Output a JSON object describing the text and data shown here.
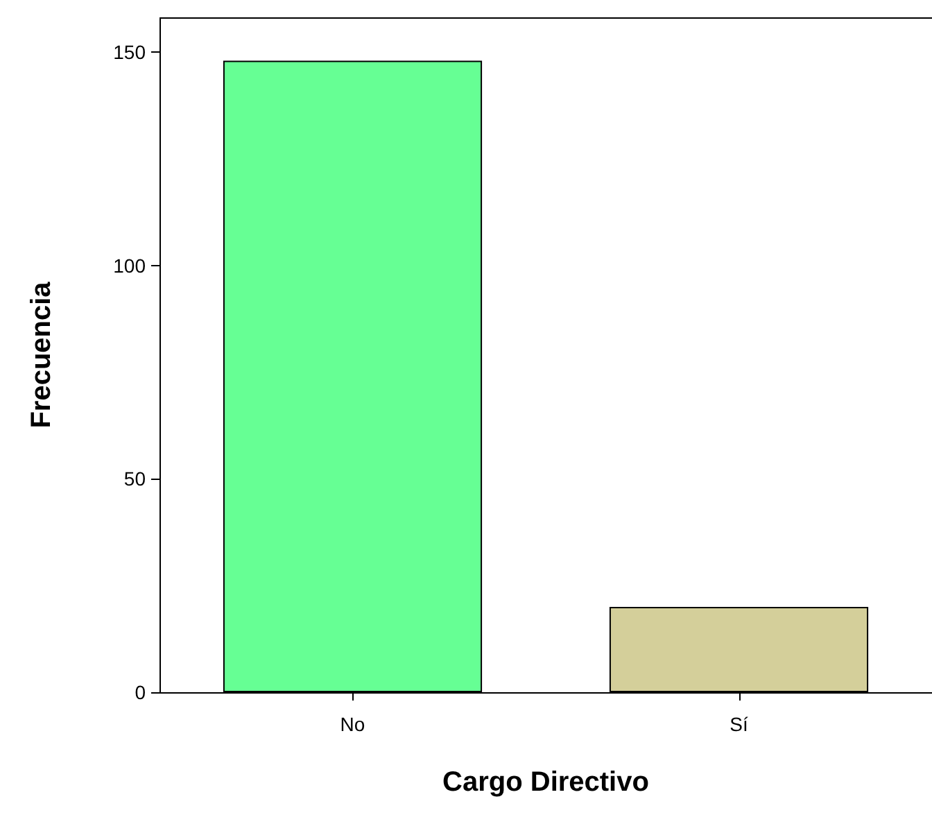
{
  "chart_data": {
    "type": "bar",
    "xlabel": "Cargo Directivo",
    "ylabel": "Frecuencia",
    "categories": [
      "No",
      "Sí"
    ],
    "values": [
      148,
      20
    ],
    "colors": [
      "#66ff94",
      "#d4cf9a"
    ],
    "ylim": [
      0,
      158
    ],
    "yticks": [
      0,
      50,
      100,
      150
    ],
    "grid": false
  }
}
